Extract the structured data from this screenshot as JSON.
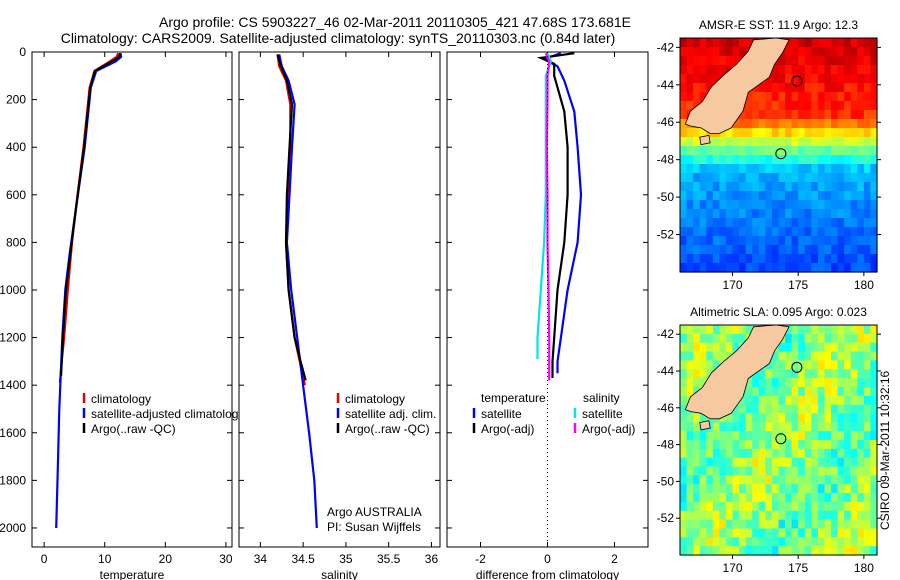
{
  "figure": {
    "title_line1": "Argo profile: CS 5903227_46 02-Mar-2011 20110305_421 47.68S 173.681E",
    "title_line2": "Climatology: CARS2009. Satellite-adjusted climatology: synTS_20110303.nc (0.84d later)",
    "credit": "CSIRO 09-Mar-2011 10:32:16",
    "argo_info_line1": "Argo AUSTRALIA",
    "argo_info_line2": "PI: Susan Wijffels"
  },
  "colors": {
    "climatology": "#e00000",
    "satellite": "#0000ff",
    "argo": "#000000",
    "salinity_satellite": "#00e5e5",
    "salinity_argo": "#ff00ff",
    "land": "#f7c9a0"
  },
  "chart_data": [
    {
      "id": "temperature",
      "type": "line",
      "xlabel": "temperature",
      "ylabel": "",
      "xlim": [
        -2,
        31
      ],
      "ylim": [
        2080,
        0
      ],
      "xticks": [
        "0",
        "10",
        "20",
        "30"
      ],
      "yticks": [
        "0",
        "200",
        "400",
        "600",
        "800",
        "1000",
        "1200",
        "1400",
        "1600",
        "1800",
        "2000"
      ],
      "legend": [
        "climatology",
        "satellite-adjusted climatology",
        "Argo(..raw -QC)"
      ],
      "series": [
        {
          "name": "climatology",
          "x": [
            12.2,
            12.0,
            10.8,
            8.3,
            7.5,
            6.5,
            5.5,
            4.6,
            3.9,
            3.3,
            2.9,
            2.6
          ],
          "y": [
            5,
            20,
            40,
            80,
            150,
            400,
            600,
            800,
            1000,
            1200,
            1300,
            1390
          ]
        },
        {
          "name": "satellite-adjusted climatology",
          "x": [
            12.6,
            12.7,
            11.8,
            8.6,
            7.7,
            6.7,
            5.3,
            4.2,
            3.5,
            3.0,
            2.5,
            2.2,
            2.0
          ],
          "y": [
            5,
            20,
            40,
            80,
            150,
            400,
            650,
            850,
            1000,
            1200,
            1500,
            1800,
            2000
          ]
        },
        {
          "name": "Argo(..raw -QC)",
          "x": [
            12.5,
            12.4,
            11.2,
            8.4,
            7.6,
            6.6,
            5.3,
            4.3,
            3.6,
            3.1,
            2.8
          ],
          "y": [
            5,
            20,
            40,
            80,
            150,
            400,
            650,
            850,
            1000,
            1200,
            1360
          ]
        }
      ]
    },
    {
      "id": "salinity",
      "type": "line",
      "xlabel": "salinity",
      "xlim": [
        33.75,
        36.1
      ],
      "ylim": [
        2080,
        0
      ],
      "xticks": [
        "34",
        "34.5",
        "35",
        "35.5",
        "36"
      ],
      "legend": [
        "climatology",
        "satellite adj. clim.",
        "Argo(..raw -QC)"
      ],
      "series": [
        {
          "name": "climatology",
          "x": [
            34.2,
            34.22,
            34.3,
            34.35,
            34.35,
            34.32,
            34.3,
            34.33,
            34.4,
            34.46,
            34.52
          ],
          "y": [
            10,
            60,
            120,
            220,
            400,
            600,
            800,
            1000,
            1200,
            1300,
            1400
          ]
        },
        {
          "name": "satellite adj. clim.",
          "x": [
            34.22,
            34.25,
            34.33,
            34.4,
            34.37,
            34.34,
            34.31,
            34.36,
            34.43,
            34.5,
            34.57,
            34.63,
            34.66
          ],
          "y": [
            10,
            60,
            120,
            220,
            400,
            600,
            800,
            1000,
            1200,
            1400,
            1600,
            1800,
            2000
          ]
        },
        {
          "name": "Argo(..raw -QC)",
          "x": [
            34.2,
            34.24,
            34.31,
            34.37,
            34.34,
            34.31,
            34.3,
            34.33,
            34.4,
            34.47,
            34.53
          ],
          "y": [
            10,
            60,
            120,
            220,
            400,
            600,
            800,
            1000,
            1200,
            1300,
            1380
          ]
        }
      ]
    },
    {
      "id": "difference",
      "type": "line",
      "xlabel": "difference from climatology",
      "xlim": [
        -3,
        3
      ],
      "ylim": [
        2080,
        0
      ],
      "xticks": [
        "-2",
        "0",
        "2"
      ],
      "legend_left_header": "temperature",
      "legend_right_header": "salinity",
      "legend_left": [
        "satellite",
        "Argo(-adj)"
      ],
      "legend_right": [
        "satellite",
        "Argo(-adj)"
      ],
      "series": [
        {
          "name": "temperature satellite",
          "x": [
            0.4,
            -0.1,
            0.3,
            0.5,
            0.8,
            0.9,
            1.0,
            0.9,
            0.6,
            0.4,
            0.3,
            0.3
          ],
          "y": [
            5,
            30,
            60,
            120,
            250,
            400,
            600,
            800,
            1000,
            1200,
            1300,
            1350
          ]
        },
        {
          "name": "temperature Argo(-adj)",
          "x": [
            0.8,
            -0.2,
            0.2,
            0.2,
            0.5,
            0.6,
            0.6,
            0.5,
            0.3,
            0.2,
            0.15,
            0.15
          ],
          "y": [
            5,
            25,
            50,
            100,
            250,
            400,
            600,
            800,
            1000,
            1200,
            1300,
            1370
          ]
        },
        {
          "name": "salinity satellite",
          "x": [
            0.0,
            0.1,
            -0.05,
            -0.05,
            -0.05,
            -0.05,
            -0.1,
            -0.2,
            -0.3,
            -0.3
          ],
          "y": [
            5,
            40,
            100,
            200,
            400,
            600,
            800,
            1000,
            1200,
            1290
          ]
        },
        {
          "name": "salinity Argo(-adj)",
          "x": [
            -0.05,
            0.05,
            0.0,
            0.0,
            -0.02,
            0.0,
            0.0,
            0.03,
            0.05,
            0.05
          ],
          "y": [
            5,
            40,
            100,
            200,
            400,
            600,
            800,
            1000,
            1200,
            1380
          ]
        }
      ]
    },
    {
      "id": "sst-map",
      "type": "heatmap",
      "title": "AMSR-E SST: 11.9 Argo: 12.3",
      "xlim": [
        166,
        181
      ],
      "ylim": [
        -54,
        -41.5
      ],
      "xticks": [
        "170",
        "175",
        "180"
      ],
      "yticks": [
        "-42",
        "-44",
        "-46",
        "-48",
        "-50",
        "-52"
      ],
      "argo_lon": 173.681,
      "argo_lat": -47.68
    },
    {
      "id": "sla-map",
      "type": "heatmap",
      "title": "Altimetric SLA: 0.095 Argo: 0.023",
      "xlim": [
        166,
        181
      ],
      "ylim": [
        -54,
        -41.5
      ],
      "xticks": [
        "170",
        "175",
        "180"
      ],
      "yticks": [
        "-42",
        "-44",
        "-46",
        "-48",
        "-50",
        "-52"
      ],
      "argo_lon": 173.681,
      "argo_lat": -47.68
    }
  ]
}
